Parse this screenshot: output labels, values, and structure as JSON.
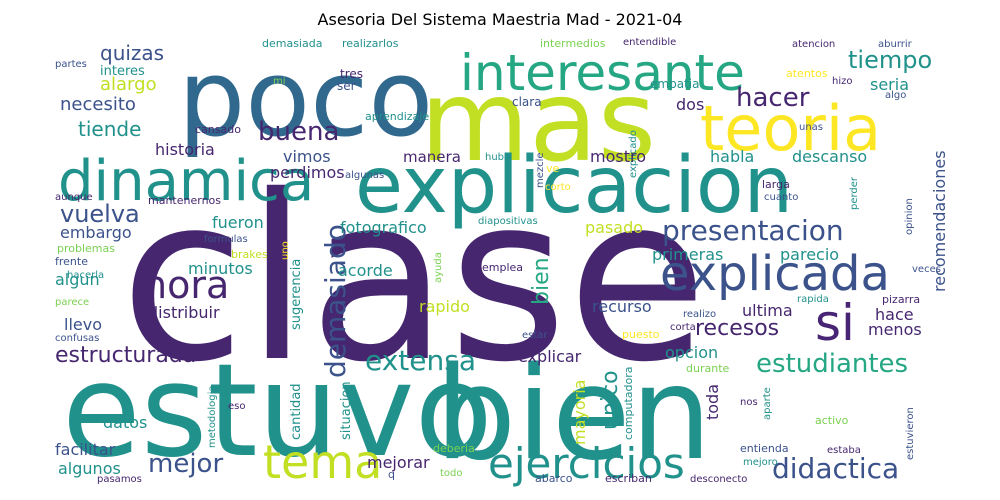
{
  "title": "Asesoria Del Sistema Maestria Mad - 2021-04",
  "palette": {
    "indigo": "#46276f",
    "deep": "#482475",
    "blue": "#31688e",
    "steel": "#3b528b",
    "teal": "#21918c",
    "sea": "#26a784",
    "green": "#35b779",
    "lime": "#7ad151",
    "yellowgreen": "#c2df23",
    "yellow": "#fde725"
  },
  "words": [
    {
      "id": "clase",
      "text": "clase",
      "c": "indigo"
    },
    {
      "id": "estuvo",
      "text": "estuvo",
      "c": "teal"
    },
    {
      "id": "bien-big",
      "text": "bien",
      "c": "teal"
    },
    {
      "id": "poco",
      "text": "poco",
      "c": "blue"
    },
    {
      "id": "mas",
      "text": "mas",
      "c": "yellowgreen"
    },
    {
      "id": "explicacion",
      "text": "explicacion",
      "c": "teal"
    },
    {
      "id": "interesante",
      "text": "interesante",
      "c": "sea"
    },
    {
      "id": "teoria",
      "text": "teoria",
      "c": "yellow"
    },
    {
      "id": "dinamica",
      "text": "dinamica",
      "c": "teal"
    },
    {
      "id": "explicada",
      "text": "explicada",
      "c": "steel"
    },
    {
      "id": "tema",
      "text": "tema",
      "c": "yellowgreen"
    },
    {
      "id": "ejercicios",
      "text": "ejercicios",
      "c": "teal"
    },
    {
      "id": "si",
      "text": "si",
      "c": "deep"
    },
    {
      "id": "hora",
      "text": "hora",
      "c": "indigo"
    },
    {
      "id": "presentacion",
      "text": "presentacion",
      "c": "steel"
    },
    {
      "id": "demasiado",
      "text": "demasiado",
      "c": "steel"
    },
    {
      "id": "didactica",
      "text": "didactica",
      "c": "steel"
    },
    {
      "id": "estudiantes",
      "text": "estudiantes",
      "c": "sea"
    },
    {
      "id": "extensa",
      "text": "extensa",
      "c": "teal"
    },
    {
      "id": "estructurada",
      "text": "estructurada",
      "c": "indigo"
    },
    {
      "id": "vuelva",
      "text": "vuelva",
      "c": "steel"
    },
    {
      "id": "buena",
      "text": "buena",
      "c": "indigo"
    },
    {
      "id": "hacer",
      "text": "hacer",
      "c": "indigo"
    },
    {
      "id": "tiempo",
      "text": "tiempo",
      "c": "teal"
    },
    {
      "id": "mejor",
      "text": "mejor",
      "c": "steel"
    },
    {
      "id": "recesos",
      "text": "recesos",
      "c": "indigo"
    },
    {
      "id": "bien-small",
      "text": "bien",
      "c": "sea"
    },
    {
      "id": "unico",
      "text": "unico",
      "c": "teal"
    },
    {
      "id": "quizas",
      "text": "quizas",
      "c": "steel"
    },
    {
      "id": "alargo",
      "text": "alargo",
      "c": "yellowgreen"
    },
    {
      "id": "necesito",
      "text": "necesito",
      "c": "steel"
    },
    {
      "id": "tiende",
      "text": "tiende",
      "c": "teal"
    },
    {
      "id": "interes",
      "text": "interes",
      "c": "teal"
    },
    {
      "id": "partes",
      "text": "partes",
      "c": "steel"
    },
    {
      "id": "demasiada",
      "text": "demasiada",
      "c": "teal"
    },
    {
      "id": "realizarlos",
      "text": "realizarlos",
      "c": "teal"
    },
    {
      "id": "intermedios",
      "text": "intermedios",
      "c": "lime"
    },
    {
      "id": "entendible",
      "text": "entendible",
      "c": "indigo"
    },
    {
      "id": "atencion",
      "text": "atencion",
      "c": "indigo"
    },
    {
      "id": "aburrir",
      "text": "aburrir",
      "c": "steel"
    },
    {
      "id": "seria",
      "text": "seria",
      "c": "teal"
    },
    {
      "id": "recomendaciones",
      "text": "recomendaciones",
      "c": "steel"
    },
    {
      "id": "tres",
      "text": "tres",
      "c": "indigo"
    },
    {
      "id": "ser",
      "text": "ser",
      "c": "steel"
    },
    {
      "id": "mi",
      "text": "mi",
      "c": "lime"
    },
    {
      "id": "vimos",
      "text": "vimos",
      "c": "steel"
    },
    {
      "id": "historia",
      "text": "historia",
      "c": "indigo"
    },
    {
      "id": "perdimos",
      "text": "perdimos",
      "c": "indigo"
    },
    {
      "id": "algunas",
      "text": "algunas",
      "c": "steel"
    },
    {
      "id": "cansado",
      "text": "cansado",
      "c": "indigo"
    },
    {
      "id": "aprendizaje",
      "text": "aprendizaje",
      "c": "teal"
    },
    {
      "id": "clara",
      "text": "clara",
      "c": "steel"
    },
    {
      "id": "dos",
      "text": "dos",
      "c": "indigo"
    },
    {
      "id": "empatia",
      "text": "empatia",
      "c": "teal"
    },
    {
      "id": "explicado",
      "text": "explicado",
      "c": "teal"
    },
    {
      "id": "atentos",
      "text": "atentos",
      "c": "yellow"
    },
    {
      "id": "hizo",
      "text": "hizo",
      "c": "indigo"
    },
    {
      "id": "algo",
      "text": "algo",
      "c": "steel"
    },
    {
      "id": "unas",
      "text": "unas",
      "c": "steel"
    },
    {
      "id": "manera",
      "text": "manera",
      "c": "indigo"
    },
    {
      "id": "mostro",
      "text": "mostro",
      "c": "indigo"
    },
    {
      "id": "habla",
      "text": "habla",
      "c": "teal"
    },
    {
      "id": "descanso",
      "text": "descanso",
      "c": "teal"
    },
    {
      "id": "mezcle",
      "text": "mezcle",
      "c": "steel"
    },
    {
      "id": "ve",
      "text": "ve",
      "c": "yellow"
    },
    {
      "id": "hubo",
      "text": "hubo",
      "c": "teal"
    },
    {
      "id": "corto",
      "text": "corto",
      "c": "yellow"
    },
    {
      "id": "perder",
      "text": "perder",
      "c": "teal"
    },
    {
      "id": "larga",
      "text": "larga",
      "c": "indigo"
    },
    {
      "id": "cuanto",
      "text": "cuanto",
      "c": "steel"
    },
    {
      "id": "opinion",
      "text": "opinion",
      "c": "steel"
    },
    {
      "id": "mantenernos",
      "text": "mantenernos",
      "c": "indigo"
    },
    {
      "id": "aunque",
      "text": "aunque",
      "c": "indigo"
    },
    {
      "id": "embargo",
      "text": "embargo",
      "c": "steel"
    },
    {
      "id": "fueron",
      "text": "fueron",
      "c": "teal"
    },
    {
      "id": "fotografico",
      "text": "fotografico",
      "c": "teal"
    },
    {
      "id": "formulas",
      "text": "formulas",
      "c": "steel"
    },
    {
      "id": "diapositivas",
      "text": "diapositivas",
      "c": "teal"
    },
    {
      "id": "pasado",
      "text": "pasado",
      "c": "yellowgreen"
    },
    {
      "id": "problemas",
      "text": "problemas",
      "c": "lime"
    },
    {
      "id": "frente",
      "text": "frente",
      "c": "steel"
    },
    {
      "id": "hacerla",
      "text": "hacerla",
      "c": "teal"
    },
    {
      "id": "parece",
      "text": "parece",
      "c": "lime"
    },
    {
      "id": "algun",
      "text": "algun",
      "c": "teal"
    },
    {
      "id": "brakes",
      "text": "brakes",
      "c": "yellowgreen"
    },
    {
      "id": "minutos",
      "text": "minutos",
      "c": "teal"
    },
    {
      "id": "sugerencia",
      "text": "sugerencia",
      "c": "teal"
    },
    {
      "id": "uno",
      "text": "uno",
      "c": "yellow"
    },
    {
      "id": "ayuda",
      "text": "ayuda",
      "c": "lime"
    },
    {
      "id": "acorde",
      "text": "acorde",
      "c": "teal"
    },
    {
      "id": "emplea",
      "text": "emplea",
      "c": "indigo"
    },
    {
      "id": "primeras",
      "text": "primeras",
      "c": "teal"
    },
    {
      "id": "parecio",
      "text": "parecio",
      "c": "teal"
    },
    {
      "id": "veces",
      "text": "veces",
      "c": "steel"
    },
    {
      "id": "hace",
      "text": "hace",
      "c": "indigo"
    },
    {
      "id": "pizarra",
      "text": "pizarra",
      "c": "indigo"
    },
    {
      "id": "rapida",
      "text": "rapida",
      "c": "teal"
    },
    {
      "id": "distribuir",
      "text": "distribuir",
      "c": "indigo"
    },
    {
      "id": "rapido",
      "text": "rapido",
      "c": "yellowgreen"
    },
    {
      "id": "recurso",
      "text": "recurso",
      "c": "steel"
    },
    {
      "id": "realizo",
      "text": "realizo",
      "c": "steel"
    },
    {
      "id": "ultima",
      "text": "ultima",
      "c": "indigo"
    },
    {
      "id": "llevo",
      "text": "llevo",
      "c": "steel"
    },
    {
      "id": "corta",
      "text": "corta",
      "c": "indigo"
    },
    {
      "id": "menos",
      "text": "menos",
      "c": "indigo"
    },
    {
      "id": "confusas",
      "text": "confusas",
      "c": "steel"
    },
    {
      "id": "estar",
      "text": "estar",
      "c": "steel"
    },
    {
      "id": "puesto",
      "text": "puesto",
      "c": "yellow"
    },
    {
      "id": "cantidad",
      "text": "cantidad",
      "c": "teal"
    },
    {
      "id": "situacion",
      "text": "situacion",
      "c": "teal"
    },
    {
      "id": "explicar",
      "text": "explicar",
      "c": "indigo"
    },
    {
      "id": "opcion",
      "text": "opcion",
      "c": "teal"
    },
    {
      "id": "durante",
      "text": "durante",
      "c": "lime"
    },
    {
      "id": "mayoria",
      "text": "mayoria",
      "c": "yellowgreen"
    },
    {
      "id": "computadora",
      "text": "computadora",
      "c": "teal"
    },
    {
      "id": "toda",
      "text": "toda",
      "c": "indigo"
    },
    {
      "id": "nos",
      "text": "nos",
      "c": "indigo"
    },
    {
      "id": "aparte",
      "text": "aparte",
      "c": "teal"
    },
    {
      "id": "metodologia",
      "text": "metodologia",
      "c": "teal"
    },
    {
      "id": "eso",
      "text": "eso",
      "c": "indigo"
    },
    {
      "id": "datos",
      "text": "datos",
      "c": "teal"
    },
    {
      "id": "activo",
      "text": "activo",
      "c": "lime"
    },
    {
      "id": "estuvieron",
      "text": "estuvieron",
      "c": "steel"
    },
    {
      "id": "facilitar",
      "text": "facilitar",
      "c": "steel"
    },
    {
      "id": "algunos",
      "text": "algunos",
      "c": "teal"
    },
    {
      "id": "deberia",
      "text": "deberia",
      "c": "lime"
    },
    {
      "id": "mejorar",
      "text": "mejorar",
      "c": "indigo"
    },
    {
      "id": "entienda",
      "text": "entienda",
      "c": "steel"
    },
    {
      "id": "estaba",
      "text": "estaba",
      "c": "indigo"
    },
    {
      "id": "mejoro",
      "text": "mejoro",
      "c": "teal"
    },
    {
      "id": "pasamos",
      "text": "pasamos",
      "c": "indigo"
    },
    {
      "id": "q",
      "text": "q",
      "c": "steel"
    },
    {
      "id": "todo",
      "text": "todo",
      "c": "lime"
    },
    {
      "id": "abarco",
      "text": "abarco",
      "c": "steel"
    },
    {
      "id": "escriban",
      "text": "escriban",
      "c": "indigo"
    },
    {
      "id": "desconecto",
      "text": "desconecto",
      "c": "indigo"
    }
  ]
}
